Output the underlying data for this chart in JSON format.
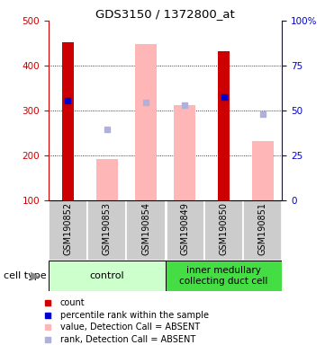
{
  "title": "GDS3150 / 1372800_at",
  "samples": [
    "GSM190852",
    "GSM190853",
    "GSM190854",
    "GSM190849",
    "GSM190850",
    "GSM190851"
  ],
  "red_bars": [
    {
      "sample": 0,
      "value": 452
    },
    {
      "sample": 4,
      "value": 432
    }
  ],
  "pink_bars": [
    {
      "sample": 1,
      "value": 192
    },
    {
      "sample": 2,
      "value": 448
    },
    {
      "sample": 3,
      "value": 311
    },
    {
      "sample": 5,
      "value": 232
    }
  ],
  "blue_squares": [
    {
      "sample": 0,
      "value": 322
    },
    {
      "sample": 4,
      "value": 330
    }
  ],
  "light_blue_squares": [
    {
      "sample": 1,
      "value": 258
    },
    {
      "sample": 2,
      "value": 318
    },
    {
      "sample": 3,
      "value": 311
    },
    {
      "sample": 5,
      "value": 292
    }
  ],
  "ylim_left": [
    100,
    500
  ],
  "ylim_right": [
    0,
    100
  ],
  "yticks_left": [
    100,
    200,
    300,
    400,
    500
  ],
  "yticks_right": [
    0,
    25,
    50,
    75,
    100
  ],
  "ytick_labels_right": [
    "0",
    "25",
    "50",
    "75",
    "100%"
  ],
  "grid_lines": [
    200,
    300,
    400
  ],
  "colors": {
    "red": "#cc0000",
    "pink": "#ffb6b6",
    "blue": "#0000cc",
    "light_blue": "#b0b0dd",
    "green_control": "#ccffcc",
    "green_inner": "#44dd44",
    "gray_bg": "#cccccc",
    "left_axis": "#cc0000",
    "right_axis": "#0000cc",
    "white": "#ffffff"
  },
  "legend_items": [
    {
      "label": "count",
      "color_key": "red"
    },
    {
      "label": "percentile rank within the sample",
      "color_key": "blue"
    },
    {
      "label": "value, Detection Call = ABSENT",
      "color_key": "pink"
    },
    {
      "label": "rank, Detection Call = ABSENT",
      "color_key": "light_blue"
    }
  ],
  "group_split": 2.5,
  "control_label": "control",
  "inner_label": "inner medullary\ncollecting duct cell",
  "celltype_label": "cell type",
  "fig_width": 3.71,
  "fig_height": 3.84,
  "dpi": 100
}
